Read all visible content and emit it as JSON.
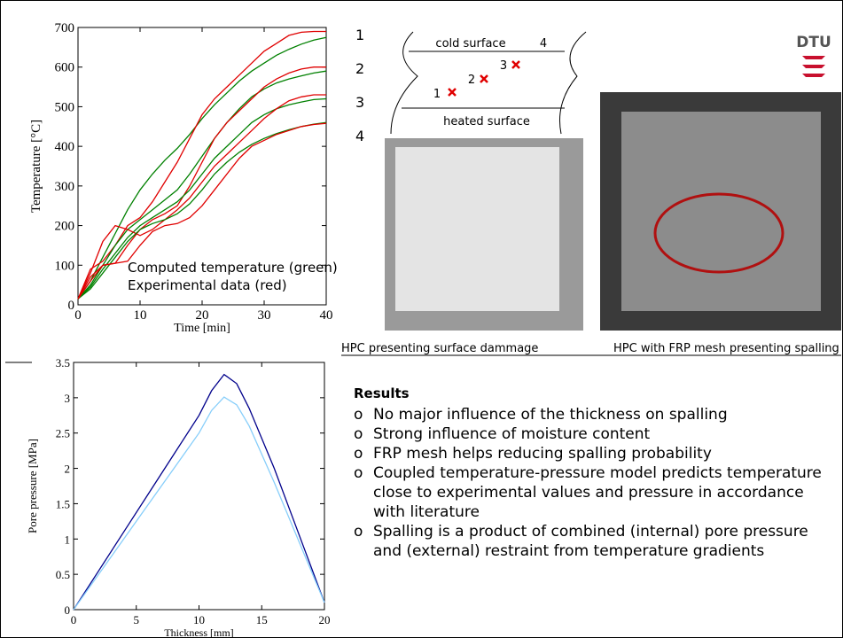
{
  "chart_data": [
    {
      "type": "line",
      "xlabel": "Time [min]",
      "ylabel": "Temperature [°C]",
      "xlim": [
        0,
        40
      ],
      "ylim": [
        0,
        700
      ],
      "xticks": [
        0,
        10,
        20,
        30,
        40
      ],
      "yticks": [
        0,
        100,
        200,
        300,
        400,
        500,
        600,
        700
      ],
      "x": [
        0,
        2,
        4,
        6,
        8,
        10,
        12,
        14,
        16,
        18,
        20,
        22,
        24,
        26,
        28,
        30,
        32,
        34,
        36,
        38,
        40
      ],
      "series": [
        {
          "color": "#008000",
          "values": [
            15,
            60,
            120,
            180,
            240,
            290,
            330,
            365,
            395,
            430,
            470,
            505,
            535,
            565,
            590,
            610,
            630,
            645,
            658,
            668,
            675
          ]
        },
        {
          "color": "#e00000",
          "values": [
            15,
            90,
            110,
            150,
            200,
            220,
            260,
            310,
            360,
            420,
            480,
            520,
            550,
            580,
            610,
            640,
            660,
            680,
            688,
            690,
            690
          ]
        },
        {
          "color": "#008000",
          "values": [
            15,
            50,
            100,
            150,
            190,
            215,
            240,
            265,
            290,
            330,
            375,
            420,
            460,
            495,
            525,
            545,
            560,
            570,
            578,
            585,
            590
          ]
        },
        {
          "color": "#e00000",
          "values": [
            15,
            70,
            100,
            105,
            150,
            190,
            215,
            230,
            250,
            300,
            360,
            420,
            460,
            490,
            520,
            550,
            570,
            585,
            595,
            600,
            600
          ]
        },
        {
          "color": "#008000",
          "values": [
            15,
            45,
            90,
            130,
            170,
            200,
            220,
            240,
            260,
            290,
            330,
            370,
            400,
            430,
            460,
            480,
            495,
            505,
            512,
            518,
            520
          ]
        },
        {
          "color": "#e00000",
          "values": [
            15,
            80,
            160,
            200,
            190,
            175,
            190,
            215,
            240,
            270,
            310,
            350,
            380,
            410,
            440,
            470,
            495,
            515,
            525,
            530,
            530
          ]
        },
        {
          "color": "#008000",
          "values": [
            15,
            40,
            80,
            120,
            160,
            190,
            205,
            215,
            230,
            255,
            290,
            330,
            360,
            385,
            405,
            420,
            432,
            442,
            450,
            456,
            460
          ]
        },
        {
          "color": "#e00000",
          "values": [
            15,
            60,
            100,
            105,
            110,
            150,
            185,
            200,
            205,
            220,
            250,
            290,
            330,
            370,
            400,
            415,
            430,
            440,
            450,
            455,
            458
          ]
        }
      ],
      "annotations": [
        "Computed temperature (green)",
        "Experimental data (red)"
      ]
    },
    {
      "type": "line",
      "xlabel": "Thickness [mm]",
      "ylabel": "Pore pressure [MPa]",
      "xlim": [
        0,
        20
      ],
      "ylim": [
        0,
        3.5
      ],
      "xticks": [
        0,
        5,
        10,
        15,
        20
      ],
      "yticks": [
        0,
        0.5,
        1,
        1.5,
        2,
        2.5,
        3,
        3.5
      ],
      "x": [
        0,
        2,
        4,
        6,
        8,
        10,
        11,
        12,
        13,
        14,
        16,
        18,
        20
      ],
      "series": [
        {
          "color": "#00008b",
          "values": [
            0,
            0.55,
            1.1,
            1.65,
            2.2,
            2.75,
            3.1,
            3.33,
            3.2,
            2.85,
            2.0,
            1.05,
            0.1
          ]
        },
        {
          "color": "#87cefa",
          "values": [
            0,
            0.5,
            1.0,
            1.5,
            2.0,
            2.5,
            2.82,
            3.01,
            2.9,
            2.6,
            1.8,
            0.95,
            0.1
          ]
        }
      ]
    }
  ],
  "side_numbers": [
    "1",
    "2",
    "3",
    "4"
  ],
  "diagram": {
    "top_label": "cold surface",
    "top_number": "4",
    "bottom_label": "heated surface",
    "points": [
      "1",
      "2",
      "3"
    ]
  },
  "logo": "DTU",
  "captions": [
    "HPC presenting surface dammage",
    "HPC with FRP mesh presenting spalling"
  ],
  "results": {
    "heading": "Results",
    "items": [
      "No major influence of the thickness on spalling",
      "Strong influence of moisture content",
      "FRP mesh helps reducing spalling probability",
      "Coupled temperature-pressure model predicts temperature close to experimental values and pressure in accordance with literature",
      "Spalling is a product of combined (internal) pore pressure and (external) restraint from temperature gradients"
    ]
  }
}
